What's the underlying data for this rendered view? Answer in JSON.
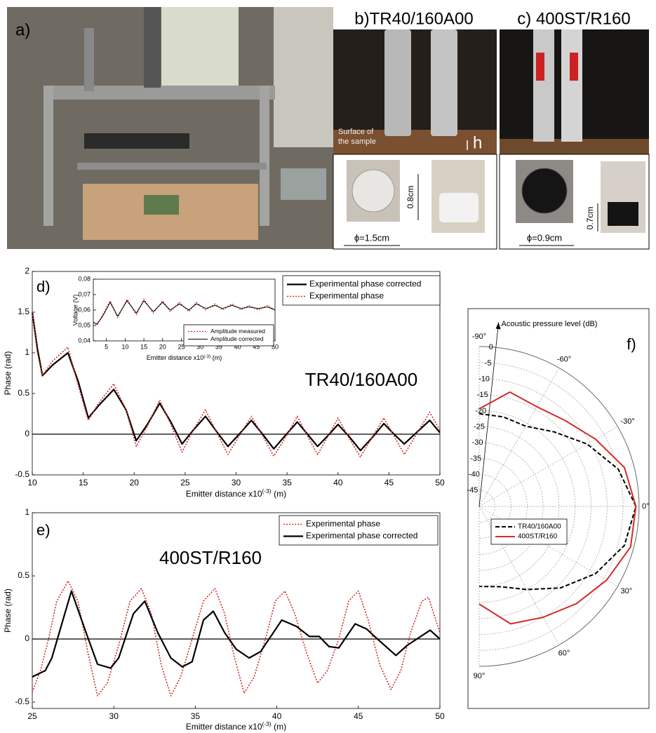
{
  "panels": {
    "a": {
      "label": "a)"
    },
    "b": {
      "title": "b)TR40/160A00",
      "surface": [
        "Surface of",
        "the sample"
      ],
      "h": "h",
      "diameter": "ϕ=1.5cm",
      "height": "0.8cm"
    },
    "c": {
      "title": "c) 400ST/R160",
      "diameter": "ϕ=0.9cm",
      "height": "0.7cm"
    }
  },
  "chart_data": [
    {
      "type": "line",
      "panel_label": "d)",
      "annotation": "TR40/160A00",
      "xlabel": {
        "text": "Emitter distance x10",
        "sup": "(-3)",
        "unit": "(m)"
      },
      "ylabel": "Phase (rad)",
      "xlim": [
        10,
        50
      ],
      "ylim": [
        -0.5,
        2
      ],
      "xticks": [
        10,
        15,
        20,
        25,
        30,
        35,
        40,
        45,
        50
      ],
      "yticks": [
        -0.5,
        0,
        0.5,
        1,
        1.5,
        2
      ],
      "zero_line": true,
      "legend": "upper right",
      "x": [
        10,
        10.5,
        11,
        12,
        13.5,
        14.5,
        15.5,
        16.5,
        18,
        19.2,
        20.2,
        21.3,
        22.5,
        23.6,
        24.7,
        25.8,
        27,
        28.1,
        29.2,
        30.3,
        31.5,
        32.6,
        33.7,
        34.8,
        36,
        37,
        38,
        39,
        40,
        41.1,
        42.2,
        43.3,
        44.5,
        45.5,
        46.5,
        47.7,
        49,
        50
      ],
      "series": [
        {
          "name": "Experimental phase corrected",
          "color": "#000000",
          "style": "solid",
          "width": 2.2,
          "values": [
            1.5,
            1.05,
            0.72,
            0.85,
            1.0,
            0.65,
            0.2,
            0.35,
            0.55,
            0.3,
            -0.08,
            0.12,
            0.38,
            0.15,
            -0.12,
            0.05,
            0.22,
            0.03,
            -0.15,
            0.0,
            0.17,
            0.0,
            -0.18,
            -0.02,
            0.15,
            0.0,
            -0.15,
            -0.02,
            0.12,
            -0.03,
            -0.2,
            -0.05,
            0.13,
            0.0,
            -0.12,
            0.02,
            0.17,
            0.02
          ]
        },
        {
          "name": "Experimental phase",
          "color": "#d42a2a",
          "style": "dotted",
          "width": 1.6,
          "values": [
            1.5,
            1.0,
            0.72,
            0.9,
            1.07,
            0.6,
            0.17,
            0.38,
            0.62,
            0.3,
            -0.15,
            0.1,
            0.42,
            0.12,
            -0.22,
            0.05,
            0.3,
            0.02,
            -0.25,
            -0.02,
            0.22,
            -0.02,
            -0.27,
            -0.05,
            0.22,
            -0.02,
            -0.25,
            -0.03,
            0.2,
            -0.05,
            -0.28,
            -0.05,
            0.2,
            -0.02,
            -0.25,
            0.0,
            0.27,
            0.05
          ]
        }
      ]
    },
    {
      "type": "line",
      "xlabel": {
        "text": "Emitter distance x10",
        "sup": "(-3)",
        "unit": "(m)"
      },
      "ylabel": "Voltage (V)",
      "xlim": [
        1.5,
        50
      ],
      "ylim": [
        0.04,
        0.08
      ],
      "xticks": [
        5,
        10,
        15,
        20,
        25,
        30,
        35,
        40,
        45,
        50
      ],
      "yticks": [
        {
          "value": 0.04,
          "label": "0,04"
        },
        {
          "value": 0.05,
          "label": "0,05"
        },
        {
          "value": 0.06,
          "label": "0,06"
        },
        {
          "value": 0.07,
          "label": "0,07"
        },
        {
          "value": 0.08,
          "label": "0,08"
        }
      ],
      "legend": "lower right",
      "x": [
        1.5,
        2.5,
        4,
        6,
        8,
        10.5,
        13,
        15,
        17.5,
        20,
        22,
        24.5,
        27,
        29,
        31.5,
        34,
        36,
        38.5,
        41,
        43,
        45.5,
        48,
        50
      ],
      "series": [
        {
          "name": "Amplitude measured",
          "color": "#d42a2a",
          "style": "dotted",
          "width": 1.3,
          "values": [
            0.052,
            0.05,
            0.057,
            0.066,
            0.055,
            0.067,
            0.057,
            0.067,
            0.058,
            0.066,
            0.059,
            0.065,
            0.059,
            0.065,
            0.06,
            0.064,
            0.06,
            0.064,
            0.06,
            0.063,
            0.06,
            0.063,
            0.06
          ]
        },
        {
          "name": "Amplitude corrected",
          "color": "#000000",
          "style": "solid",
          "width": 1,
          "values": [
            0.052,
            0.051,
            0.056,
            0.065,
            0.056,
            0.066,
            0.058,
            0.066,
            0.059,
            0.065,
            0.06,
            0.064,
            0.06,
            0.064,
            0.061,
            0.063,
            0.061,
            0.063,
            0.061,
            0.062,
            0.061,
            0.062,
            0.06
          ]
        }
      ]
    },
    {
      "type": "line",
      "panel_label": "e)",
      "annotation": "400ST/R160",
      "xlabel": {
        "text": "Emitter distance x10",
        "sup": "(-3)",
        "unit": "(m)"
      },
      "ylabel": "Phase (rad)",
      "xlim": [
        25,
        50
      ],
      "ylim": [
        -0.55,
        1
      ],
      "xticks": [
        25,
        30,
        35,
        40,
        45,
        50
      ],
      "yticks": [
        -0.5,
        0,
        0.5,
        1
      ],
      "zero_line": true,
      "legend": "upper right",
      "series": [
        {
          "name": "Experimental phase",
          "color": "#d42a2a",
          "style": "dotted",
          "width": 1.6,
          "x": [
            25,
            25.5,
            26,
            26.5,
            27.2,
            27.8,
            28.4,
            29,
            29.6,
            30.3,
            31,
            31.7,
            32.3,
            32.9,
            33.5,
            34.1,
            34.8,
            35.5,
            36.2,
            36.8,
            37.4,
            38,
            38.6,
            39.3,
            39.9,
            40.5,
            41.1,
            41.8,
            42.5,
            43.1,
            43.8,
            44.4,
            45,
            45.6,
            46.3,
            47,
            47.6,
            48.2,
            48.9,
            49.3,
            50
          ],
          "values": [
            -0.42,
            -0.25,
            0.0,
            0.3,
            0.46,
            0.3,
            -0.1,
            -0.45,
            -0.35,
            -0.05,
            0.3,
            0.4,
            0.2,
            -0.2,
            -0.45,
            -0.3,
            0.0,
            0.3,
            0.4,
            0.2,
            -0.15,
            -0.43,
            -0.3,
            0.0,
            0.3,
            0.38,
            0.2,
            -0.1,
            -0.35,
            -0.25,
            0.0,
            0.3,
            0.38,
            0.15,
            -0.2,
            -0.4,
            -0.25,
            0.05,
            0.3,
            0.33,
            0.05
          ]
        },
        {
          "name": "Experimental phase corrected",
          "color": "#000000",
          "style": "solid",
          "width": 2.2,
          "x": [
            25,
            25.8,
            26.2,
            27.4,
            28.3,
            29,
            29.8,
            30.3,
            31.2,
            31.9,
            32.7,
            33.5,
            34.2,
            34.8,
            35.5,
            36.1,
            36.8,
            37.5,
            38.3,
            39,
            40.3,
            41.2,
            42,
            42.6,
            43.2,
            43.8,
            44.8,
            45.5,
            46,
            47.3,
            48,
            49.4,
            50
          ],
          "values": [
            -0.3,
            -0.25,
            -0.15,
            0.38,
            0.05,
            -0.2,
            -0.23,
            -0.15,
            0.2,
            0.3,
            0.05,
            -0.15,
            -0.22,
            -0.18,
            0.15,
            0.22,
            0.05,
            -0.08,
            -0.15,
            -0.1,
            0.15,
            0.1,
            0.02,
            0.02,
            -0.06,
            -0.07,
            0.12,
            0.08,
            0.02,
            -0.13,
            -0.05,
            0.07,
            0.0
          ]
        }
      ]
    },
    {
      "type": "polar",
      "panel_label": "f)",
      "title": "Acoustic pressure level (dB)",
      "rlim": [
        -50,
        0
      ],
      "rticks": [
        0,
        -5,
        -10,
        -15,
        -20,
        -25,
        -30,
        -35,
        -40,
        -45
      ],
      "thetaticks": [
        {
          "value": -90,
          "label": "-90°"
        },
        {
          "value": -60,
          "label": "-60°"
        },
        {
          "value": -30,
          "label": "-30°"
        },
        {
          "value": 0,
          "label": "0°"
        },
        {
          "value": 30,
          "label": "30°"
        },
        {
          "value": 60,
          "label": "60°"
        },
        {
          "value": 90,
          "label": "90°"
        }
      ],
      "grid": true,
      "legend": "lower left",
      "theta": [
        -90,
        -75,
        -60,
        -45,
        -30,
        -15,
        0,
        15,
        30,
        45,
        60,
        75,
        90
      ],
      "series": [
        {
          "name": "TR40/160A00",
          "color": "#000000",
          "style": "dashed",
          "width": 2,
          "values": [
            -21,
            -21,
            -21,
            -17,
            -11,
            -5,
            -1,
            -3,
            -8,
            -14,
            -20,
            -24,
            -25
          ]
        },
        {
          "name": "400ST/R160",
          "color": "#d42a2a",
          "style": "solid",
          "width": 2,
          "values": [
            -19.5,
            -13,
            -14,
            -12,
            -8,
            -3,
            -1,
            -1,
            -4,
            -7,
            -10,
            -12,
            -19.5
          ]
        }
      ]
    }
  ]
}
